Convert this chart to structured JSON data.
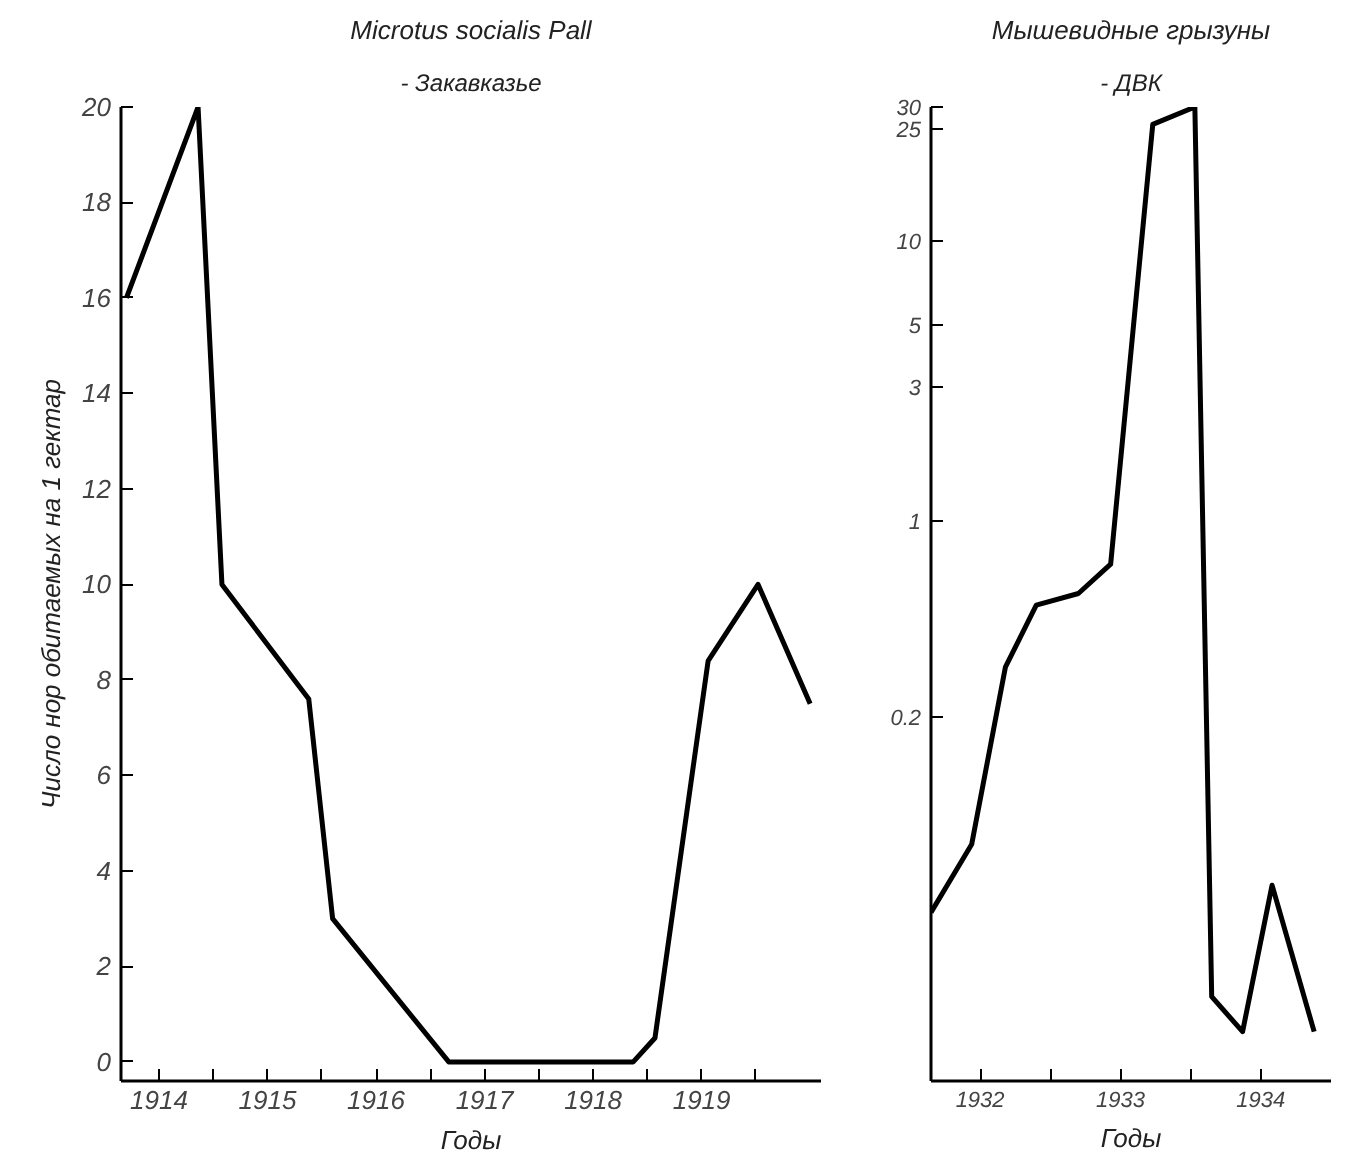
{
  "chart_data": [
    {
      "type": "line",
      "title": "Microtus socialis Pall",
      "subtitle": "- Закавказье",
      "xlabel": "Годы",
      "ylabel": "Число нор обитаемых на 1 гектар",
      "x": [
        1914.2,
        1914.86,
        1915.08,
        1915.88,
        1916.1,
        1917.17,
        1918.87,
        1919.07,
        1919.56,
        1920.02,
        1920.5
      ],
      "series": [
        {
          "color": "#000000",
          "values": [
            16,
            20,
            10,
            7.6,
            3,
            0,
            0,
            0.5,
            8.4,
            10,
            7.5
          ]
        }
      ],
      "xlim": [
        1914.15,
        1920.6
      ],
      "ylim": [
        -0.4,
        20
      ],
      "xticks": [
        {
          "value": 1914.5,
          "label": "1914"
        },
        {
          "value": 1915,
          "label": null
        },
        {
          "value": 1915.5,
          "label": "1915"
        },
        {
          "value": 1916,
          "label": null
        },
        {
          "value": 1916.5,
          "label": "1916"
        },
        {
          "value": 1917,
          "label": null
        },
        {
          "value": 1917.5,
          "label": "1917"
        },
        {
          "value": 1918,
          "label": null
        },
        {
          "value": 1918.5,
          "label": "1918"
        },
        {
          "value": 1919,
          "label": null
        },
        {
          "value": 1919.5,
          "label": "1919"
        },
        {
          "value": 1920,
          "label": null
        }
      ],
      "yticks": [
        0,
        2,
        4,
        6,
        8,
        10,
        12,
        14,
        16,
        18,
        20
      ]
    },
    {
      "type": "line",
      "title": "Мышевидные грызуны",
      "subtitle": "- ДВК",
      "xlabel": "Годы",
      "x": [
        1932.15,
        1932.44,
        1932.68,
        1932.9,
        1933.2,
        1933.43,
        1933.73,
        1934.03,
        1934.15,
        1934.37,
        1934.58,
        1934.88
      ],
      "series": [
        {
          "color": "#000000",
          "values": [
            0.04,
            0.07,
            0.3,
            0.5,
            0.55,
            0.7,
            26,
            30,
            0.02,
            0.015,
            0.05,
            0.015
          ]
        }
      ],
      "log": "y",
      "xlim": [
        1932.15,
        1935.0
      ],
      "ylim": [
        0.01,
        30
      ],
      "xticks": [
        {
          "value": 1932.5,
          "label": "1932"
        },
        {
          "value": 1933,
          "label": null
        },
        {
          "value": 1933.5,
          "label": "1933"
        },
        {
          "value": 1934,
          "label": null
        },
        {
          "value": 1934.5,
          "label": "1934"
        }
      ],
      "yticks": [
        0.2,
        1,
        3,
        5,
        10,
        25,
        30
      ]
    }
  ]
}
